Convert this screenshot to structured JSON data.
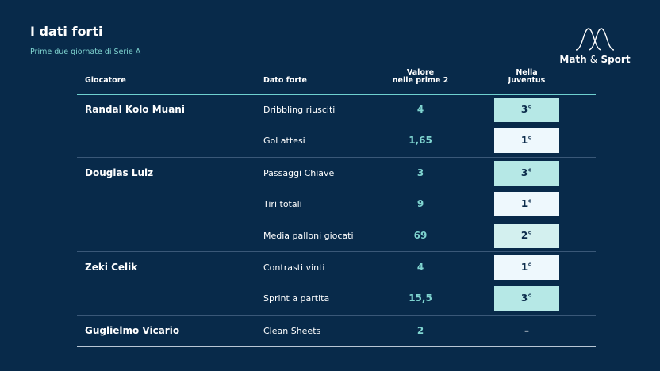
{
  "title": "I dati forti",
  "subtitle": "Prime due giornate di Serie A",
  "logo": {
    "name": "Math",
    "amp": "&",
    "name2": "Sport"
  },
  "headers": {
    "player": "Giocatore",
    "stat": "Dato forte",
    "value_line1": "Valore",
    "value_line2": "nelle prime 2",
    "juve_line1": "Nella",
    "juve_line2": "Juventus"
  },
  "rows": [
    {
      "player": "Randal Kolo Muani",
      "stat": "Dribbling riusciti",
      "value": "4",
      "rank": "3°"
    },
    {
      "player": "",
      "stat": "Gol attesi",
      "value": "1,65",
      "rank": "1°"
    },
    {
      "player": "Douglas Luiz",
      "stat": "Passaggi Chiave",
      "value": "3",
      "rank": "3°"
    },
    {
      "player": "",
      "stat": "Tiri totali",
      "value": "9",
      "rank": "1°"
    },
    {
      "player": "",
      "stat": "Media palloni giocati",
      "value": "69",
      "rank": "2°"
    },
    {
      "player": "Zeki Celik",
      "stat": "Contrasti vinti",
      "value": "4",
      "rank": "1°"
    },
    {
      "player": "",
      "stat": "Sprint a partita",
      "value": "15,5",
      "rank": "3°"
    },
    {
      "player": "Guglielmo Vicario",
      "stat": "Clean Sheets",
      "value": "2",
      "rank": "–"
    }
  ],
  "colors": {
    "background": "#082a4a",
    "accent": "#7fd4d0",
    "rank_1": "#eef8fd",
    "rank_2": "#d3f0ef",
    "rank_3": "#b6e8e6"
  }
}
